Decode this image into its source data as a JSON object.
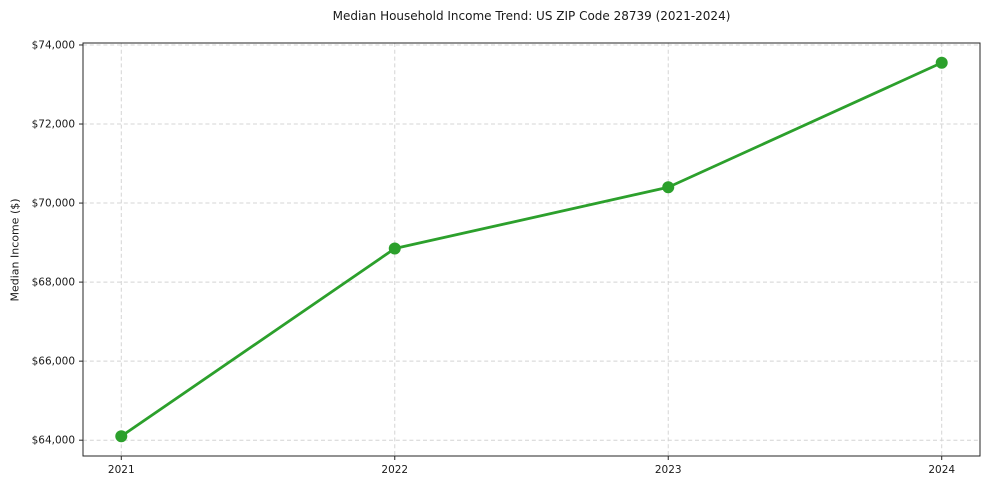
{
  "chart_data": {
    "type": "line",
    "title": "Median Household Income Trend: US ZIP Code 28739 (2021-2024)",
    "ylabel": "Median Income ($)",
    "xlabel": "",
    "x": [
      2021,
      2022,
      2023,
      2024
    ],
    "values": [
      64100,
      68850,
      70400,
      73550
    ],
    "series_name": "Median Household Income",
    "xlim": [
      2020.86,
      2024.14
    ],
    "ylim": [
      63600,
      74050
    ],
    "xticks": [
      {
        "value": 2021,
        "label": "2021"
      },
      {
        "value": 2022,
        "label": "2022"
      },
      {
        "value": 2023,
        "label": "2023"
      },
      {
        "value": 2024,
        "label": "2024"
      }
    ],
    "yticks": [
      {
        "value": 64000,
        "label": "$64,000"
      },
      {
        "value": 66000,
        "label": "$66,000"
      },
      {
        "value": 68000,
        "label": "$68,000"
      },
      {
        "value": 70000,
        "label": "$70,000"
      },
      {
        "value": 72000,
        "label": "$72,000"
      },
      {
        "value": 74000,
        "label": "$74,000"
      }
    ],
    "grid": true,
    "grid_style": "dashed",
    "legend": "none",
    "marker": "circle",
    "marker_radius": 6,
    "line_width": 2.8,
    "colors": {
      "line": "#2ca02c",
      "marker": "#2ca02c",
      "grid": "#d4d4d4",
      "spine": "#262626",
      "text": "#1a1a1a",
      "background": "#ffffff"
    }
  }
}
